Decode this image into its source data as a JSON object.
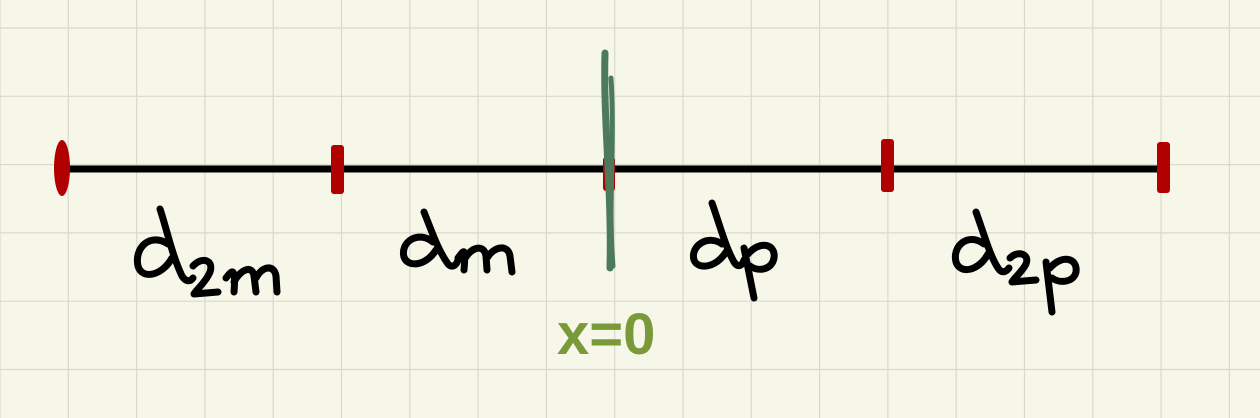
{
  "colors": {
    "background": "#f6f6e9",
    "grid": "#d9d9cc",
    "axis": "#000000",
    "tick": "#b00000",
    "origin_line": "#4d7a5a",
    "origin_label": "#7a9a3a"
  },
  "segments": [
    {
      "id": "d2m",
      "letter": "d",
      "subscript": "2m"
    },
    {
      "id": "dm",
      "letter": "d",
      "subscript": "m"
    },
    {
      "id": "dp",
      "letter": "d",
      "subscript": "p"
    },
    {
      "id": "d2p",
      "letter": "d",
      "subscript": "2p"
    }
  ],
  "origin": {
    "label": "x=0"
  }
}
